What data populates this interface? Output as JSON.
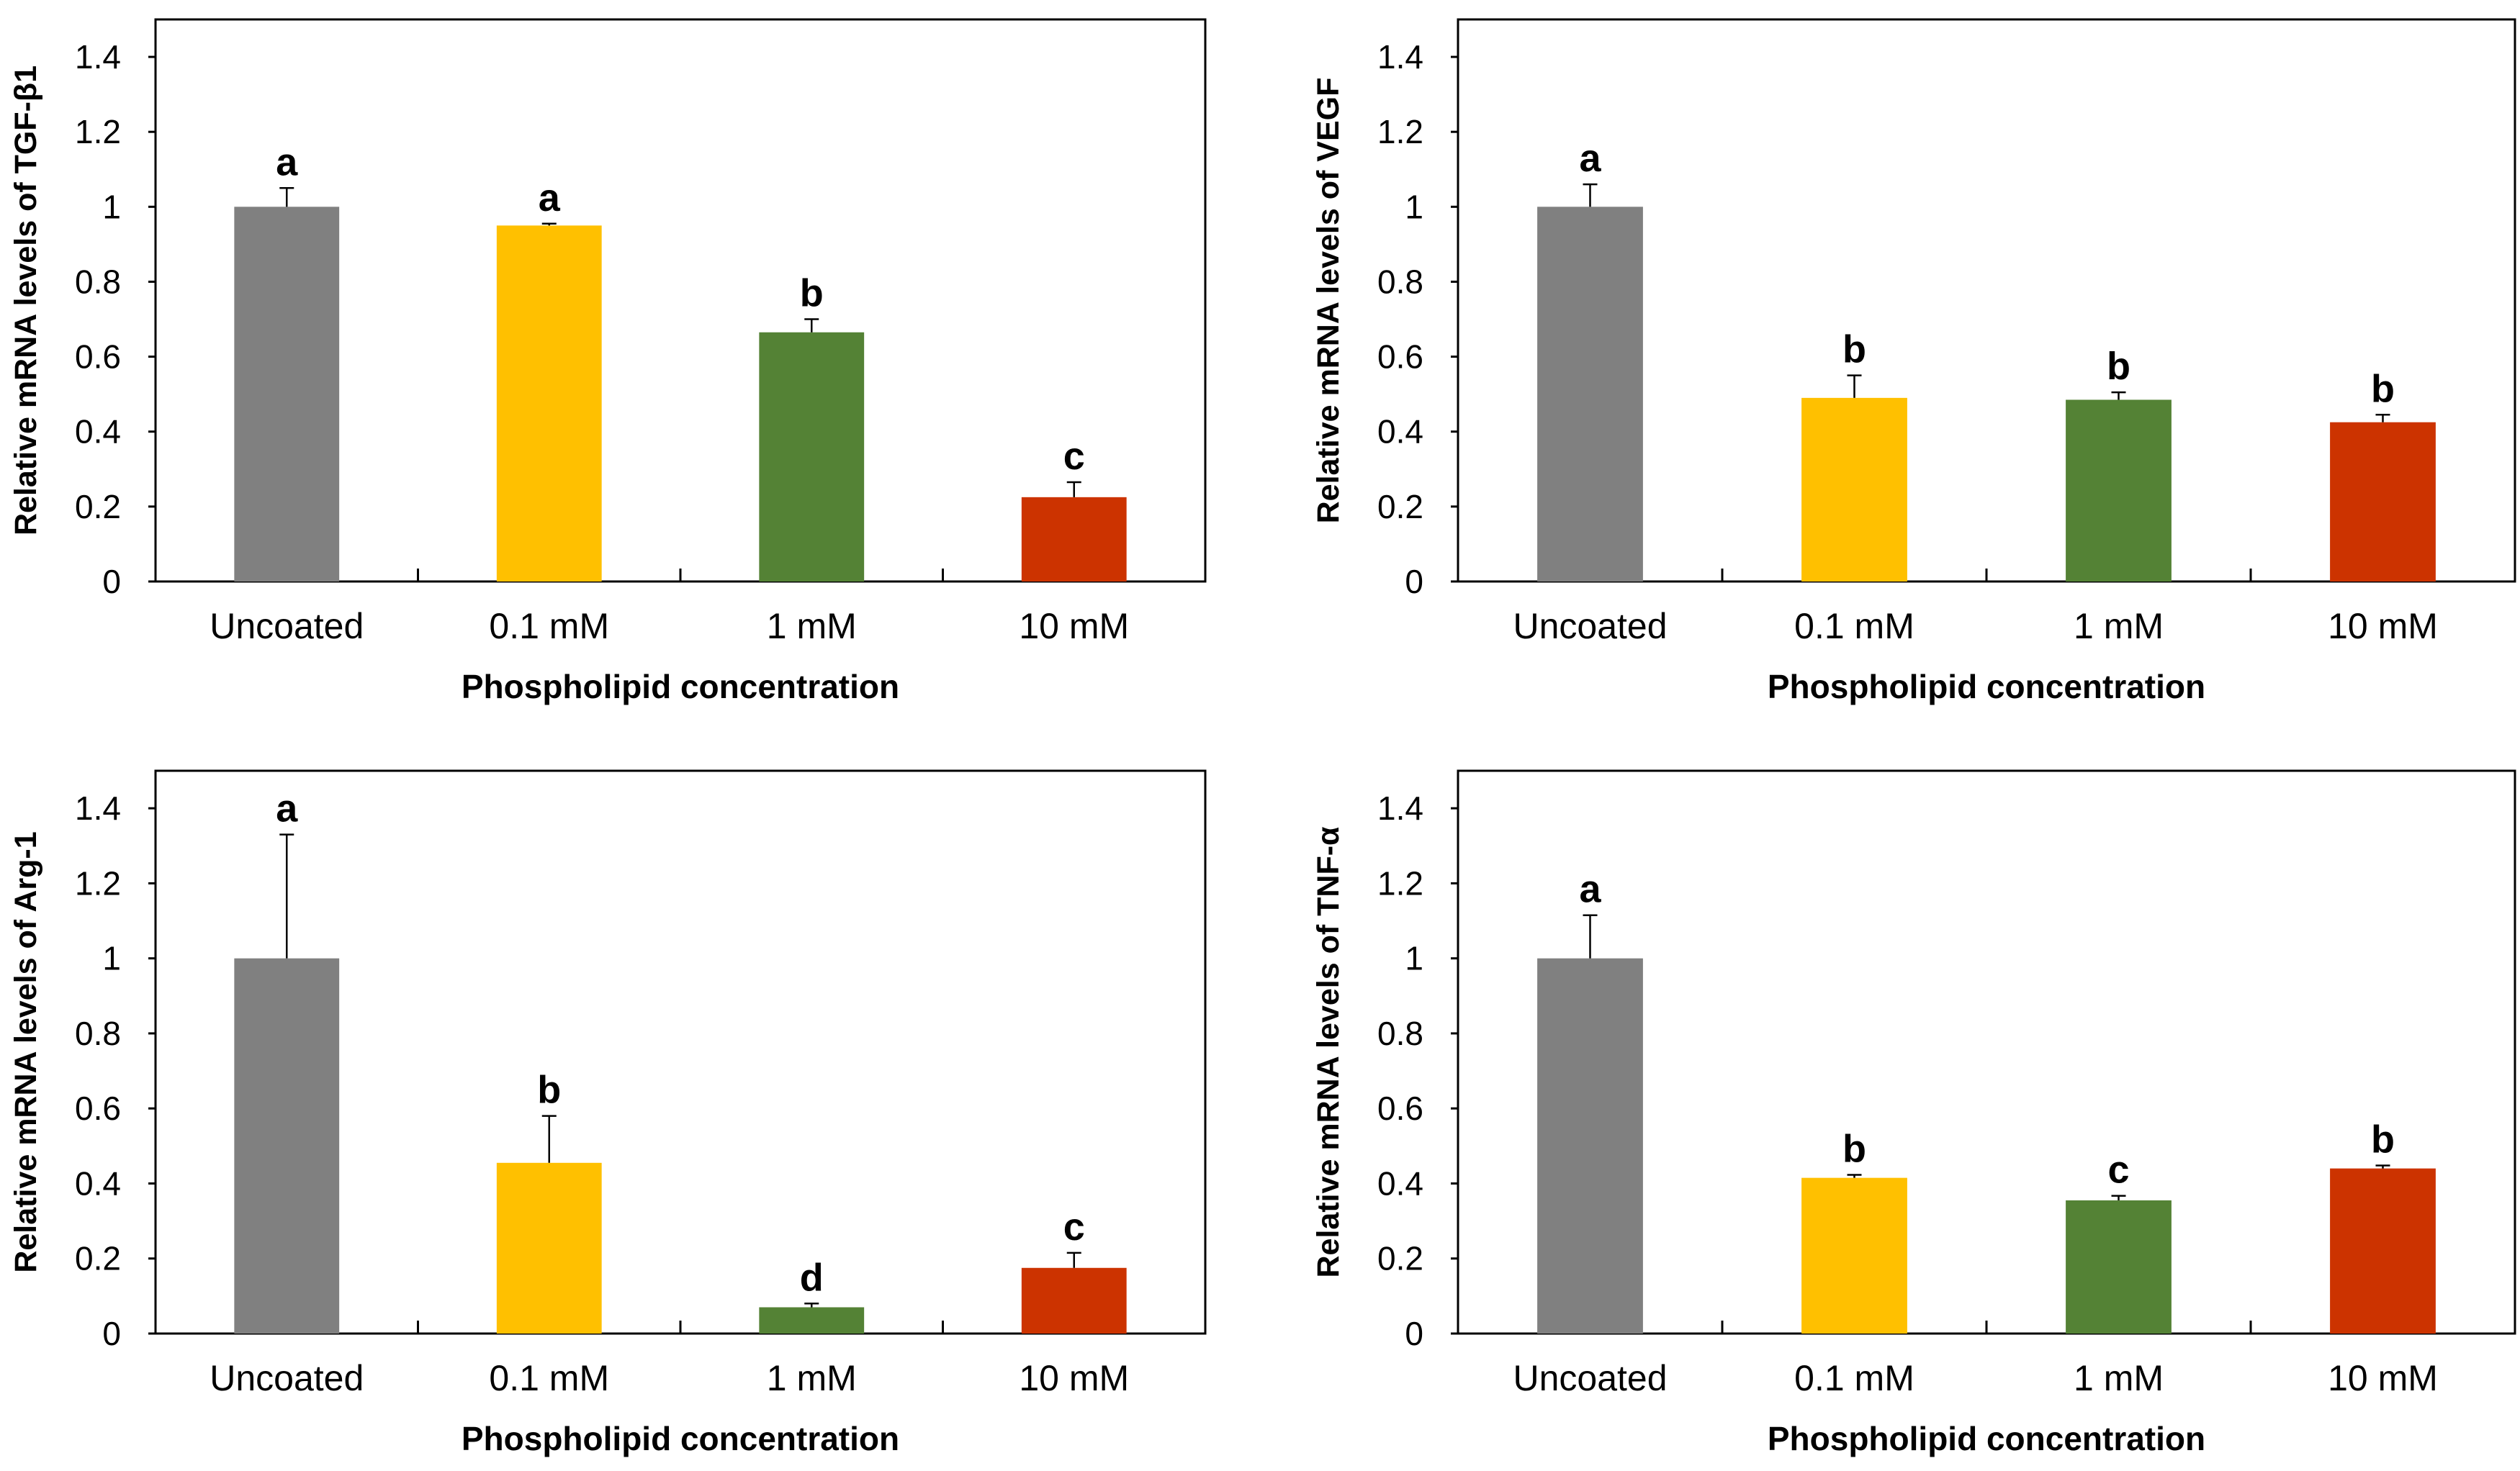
{
  "chart_data": [
    {
      "type": "bar",
      "ylabel": "Relative mRNA levels of  TGF-β1",
      "xlabel": "Phospholipid concentration",
      "categories": [
        "Uncoated",
        "0.1 mM",
        "1 mM",
        "10 mM"
      ],
      "values": [
        1.0,
        0.95,
        0.665,
        0.225
      ],
      "errors": [
        0.05,
        0.005,
        0.035,
        0.04
      ],
      "significance": [
        "a",
        "a",
        "b",
        "c"
      ],
      "ylim": [
        0,
        1.5
      ],
      "yticks": [
        "0",
        "0.2",
        "0.4",
        "0.6",
        "0.8",
        "1",
        "1.2",
        "1.4"
      ]
    },
    {
      "type": "bar",
      "ylabel": "Relative mRNA levels of  VEGF",
      "xlabel": "Phospholipid concentration",
      "categories": [
        "Uncoated",
        "0.1 mM",
        "1 mM",
        "10 mM"
      ],
      "values": [
        1.0,
        0.49,
        0.485,
        0.425
      ],
      "errors": [
        0.06,
        0.06,
        0.02,
        0.02
      ],
      "significance": [
        "a",
        "b",
        "b",
        "b"
      ],
      "ylim": [
        0,
        1.5
      ],
      "yticks": [
        "0",
        "0.2",
        "0.4",
        "0.6",
        "0.8",
        "1",
        "1.2",
        "1.4"
      ]
    },
    {
      "type": "bar",
      "ylabel": "Relative mRNA levels of  Arg-1",
      "xlabel": "Phospholipid concentration",
      "categories": [
        "Uncoated",
        "0.1 mM",
        "1 mM",
        "10 mM"
      ],
      "values": [
        1.0,
        0.455,
        0.07,
        0.175
      ],
      "errors": [
        0.33,
        0.125,
        0.01,
        0.04
      ],
      "significance": [
        "a",
        "b",
        "d",
        "c"
      ],
      "ylim": [
        0,
        1.5
      ],
      "yticks": [
        "0",
        "0.2",
        "0.4",
        "0.6",
        "0.8",
        "1",
        "1.2",
        "1.4"
      ]
    },
    {
      "type": "bar",
      "ylabel": "Relative mRNA levels of  TNF-α",
      "xlabel": "Phospholipid concentration",
      "categories": [
        "Uncoated",
        "0.1 mM",
        "1 mM",
        "10 mM"
      ],
      "values": [
        1.0,
        0.415,
        0.355,
        0.44
      ],
      "errors": [
        0.115,
        0.008,
        0.012,
        0.008
      ],
      "significance": [
        "a",
        "b",
        "c",
        "b"
      ],
      "ylim": [
        0,
        1.5
      ],
      "yticks": [
        "0",
        "0.2",
        "0.4",
        "0.6",
        "0.8",
        "1",
        "1.2",
        "1.4"
      ]
    }
  ],
  "colors": [
    "#808080",
    "#FFC000",
    "#548235",
    "#CC3300"
  ]
}
